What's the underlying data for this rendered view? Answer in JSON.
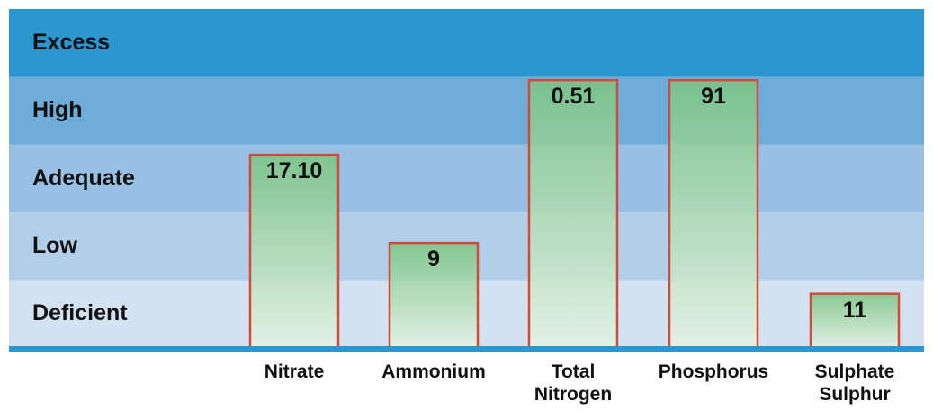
{
  "chart_data": {
    "type": "bar",
    "bands": [
      "Deficient",
      "Low",
      "Adequate",
      "High",
      "Excess"
    ],
    "categories": [
      [
        "Nitrate"
      ],
      [
        "Ammonium"
      ],
      [
        "Total",
        "Nitrogen"
      ],
      [
        "Phosphorus"
      ],
      [
        "Sulphate",
        "Sulphur"
      ]
    ],
    "values": [
      "17.10",
      "9",
      "0.51",
      "91",
      "11"
    ],
    "levels": [
      2.85,
      1.55,
      3.95,
      3.95,
      0.8
    ],
    "band_colors": [
      "#d3e2f1",
      "#b1cfe9",
      "#97c0e4",
      "#6eacda",
      "#2b96d0"
    ],
    "bar_fill": "#a9dba8",
    "bar_border": "#d44a3a",
    "baseline_color": "#2b96d0",
    "grid": false,
    "legend": "none"
  }
}
